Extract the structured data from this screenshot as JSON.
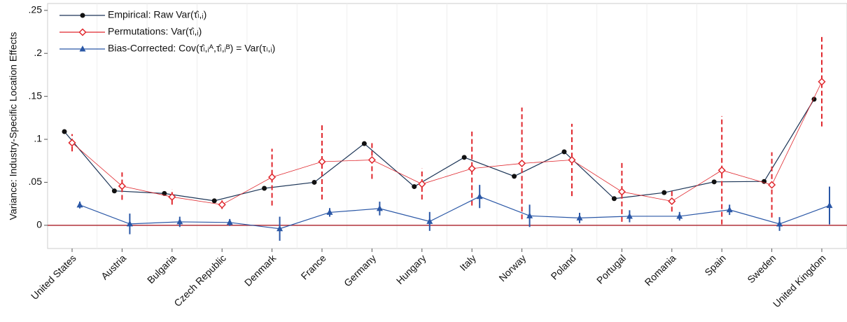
{
  "chart_data": {
    "type": "line",
    "y_axis_label": "Variance: Industry-Specific Location Effects",
    "categories": [
      "United States",
      "Austria",
      "Bulgaria",
      "Czech Republic",
      "Denmark",
      "France",
      "Germany",
      "Hungary",
      "Italy",
      "Norway",
      "Poland",
      "Portugal",
      "Romania",
      "Spain",
      "Sweden",
      "United Kingdom"
    ],
    "series": [
      {
        "name": "Empirical: Raw Var(τ̂ₗ,ᵢ)",
        "color": "#1c3557",
        "marker": "circle",
        "values": [
          0.109,
          0.04,
          0.037,
          0.0285,
          0.043,
          0.05,
          0.095,
          0.045,
          0.079,
          0.057,
          0.0855,
          0.031,
          0.038,
          0.0505,
          0.051,
          0.1466
        ]
      },
      {
        "name": "Permutations: Var(τ̂ₗ,ᵢ)",
        "color": "#e0282e",
        "marker": "diamond",
        "dashed_errors": true,
        "values": [
          0.096,
          0.0456,
          0.033,
          0.024,
          0.056,
          0.074,
          0.076,
          0.048,
          0.066,
          0.072,
          0.076,
          0.039,
          0.028,
          0.064,
          0.047,
          0.167
        ],
        "errors": [
          0.01,
          0.016,
          0.009,
          0.005,
          0.033,
          0.044,
          0.022,
          0.018,
          0.043,
          0.065,
          0.042,
          0.035,
          0.012,
          0.063,
          0.038,
          0.052
        ]
      },
      {
        "name": "Bias-Corrected: Cov(τ̂ₗ,ᵢᴬ,τ̂ₗ,ᵢᴮ) = Var(τₗ,ᵢ)",
        "color": "#2a57a6",
        "marker": "triangle",
        "values": [
          0.0236,
          0.0016,
          0.004,
          0.0033,
          -0.004,
          0.015,
          0.0195,
          0.0045,
          0.0335,
          0.011,
          0.0085,
          0.0105,
          0.0105,
          0.018,
          0.0015,
          0.023
        ],
        "errors": [
          0.004,
          0.012,
          0.006,
          0.004,
          0.014,
          0.005,
          0.008,
          0.011,
          0.0135,
          0.013,
          0.006,
          0.007,
          0.005,
          0.006,
          0.008,
          0.022
        ]
      }
    ],
    "ylim": [
      -0.027,
      0.258
    ],
    "yticks": [
      0,
      {
        "value": 0.05,
        "label": ".05"
      },
      {
        "value": 0.1,
        "label": ".1"
      },
      {
        "value": 0.15,
        "label": ".15"
      },
      {
        "value": 0.2,
        "label": ".2"
      },
      {
        "value": 0.25,
        "label": ".25"
      }
    ],
    "reference_line": 0,
    "reference_color": "#b0313a"
  }
}
